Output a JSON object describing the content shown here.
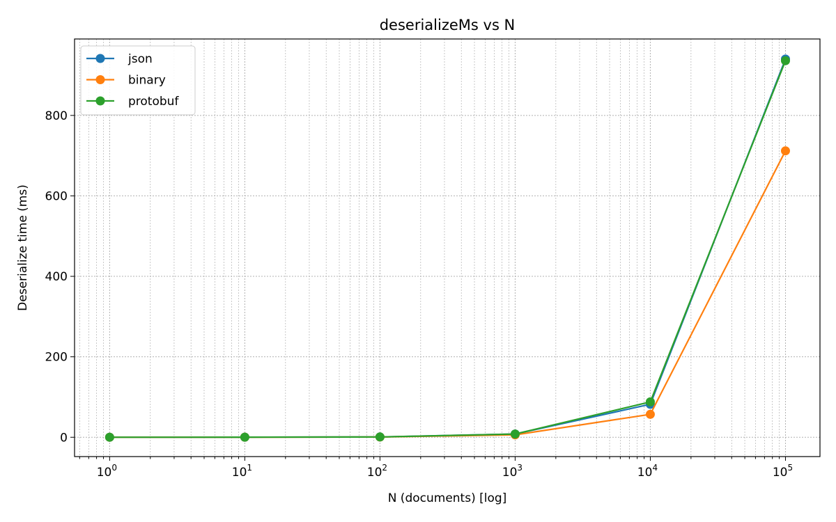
{
  "chart_data": {
    "type": "line",
    "title": "deserializeMs vs N",
    "xlabel": "N (documents) [log]",
    "ylabel": "Deserialize time (ms)",
    "x_scale": "log",
    "x": [
      1,
      10,
      100,
      1000,
      10000,
      100000
    ],
    "x_tick_labels": [
      {
        "base": "10",
        "exp": "0"
      },
      {
        "base": "10",
        "exp": "1"
      },
      {
        "base": "10",
        "exp": "2"
      },
      {
        "base": "10",
        "exp": "3"
      },
      {
        "base": "10",
        "exp": "4"
      },
      {
        "base": "10",
        "exp": "5"
      }
    ],
    "y_ticks": [
      0,
      200,
      400,
      600,
      800
    ],
    "y_tick_labels": [
      "0",
      "200",
      "400",
      "600",
      "800"
    ],
    "xlim": [
      0.55,
      180000
    ],
    "ylim": [
      -48,
      990
    ],
    "grid": true,
    "legend_position": "top-left",
    "series": [
      {
        "name": "json",
        "color": "#1f77b4",
        "values": [
          0.1,
          0.2,
          0.8,
          8,
          82,
          940
        ]
      },
      {
        "name": "binary",
        "color": "#ff7f0e",
        "values": [
          0.1,
          0.2,
          0.6,
          6,
          57,
          712
        ]
      },
      {
        "name": "protobuf",
        "color": "#2ca02c",
        "values": [
          0.1,
          0.2,
          0.8,
          8,
          88,
          936
        ]
      }
    ]
  }
}
